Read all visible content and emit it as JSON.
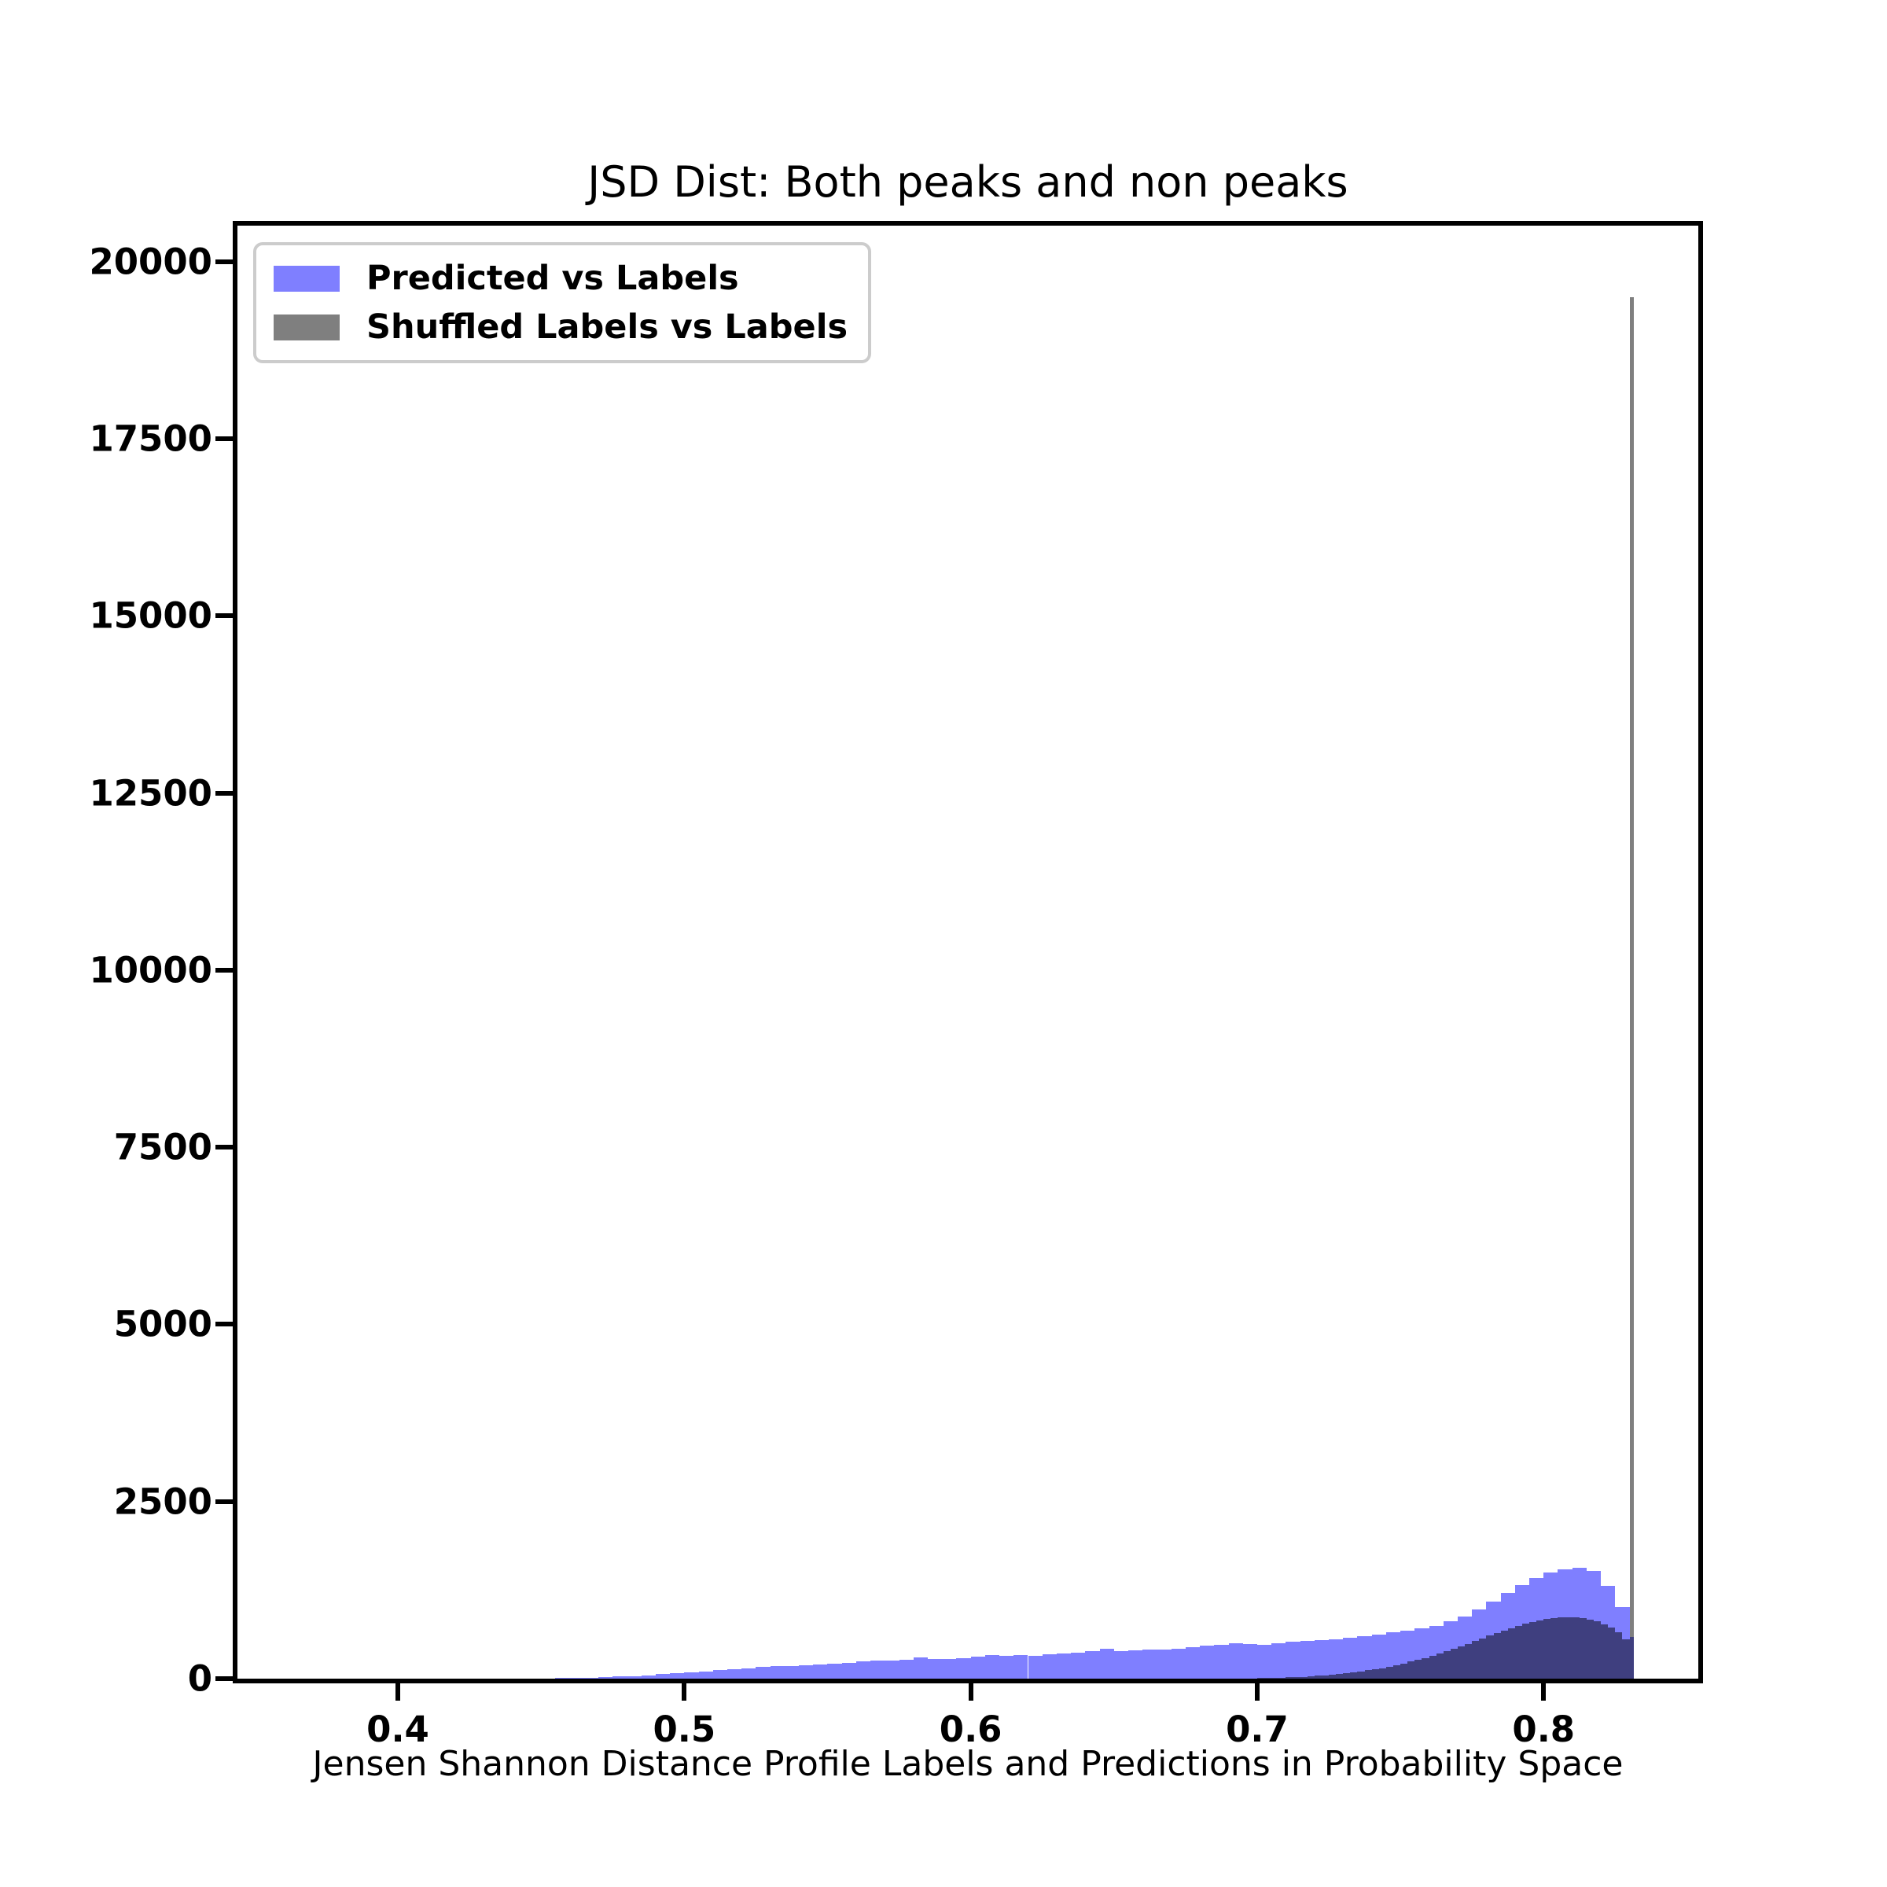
{
  "chart": {
    "title": "JSD Dist: Both peaks and non peaks",
    "xlabel": "Jensen Shannon Distance Profile Labels and Predictions in Probability Space",
    "legend": {
      "entries": [
        {
          "label": "Predicted vs Labels",
          "color": "#7f7fff"
        },
        {
          "label": "Shuffled Labels vs Labels",
          "color": "#7f7f7f"
        }
      ],
      "position": "upper left"
    }
  },
  "chart_data": {
    "type": "bar",
    "subtype": "overlaid-histograms",
    "title": "JSD Dist: Both peaks and non peaks",
    "xlabel": "Jensen Shannon Distance Profile Labels and Predictions in Probability Space",
    "ylabel": "",
    "grid": false,
    "legend_position": "upper left",
    "xlim": [
      0.344,
      0.854
    ],
    "ylim": [
      0,
      20510
    ],
    "xticks": [
      0.4,
      0.5,
      0.6,
      0.7,
      0.8
    ],
    "yticks": [
      0,
      2500,
      5000,
      7500,
      10000,
      12500,
      15000,
      17500,
      20000
    ],
    "clip_x_max": 0.8315,
    "series": [
      {
        "name": "Predicted vs Labels",
        "render_color": "#7f7fff",
        "source_color_note": "blue at alpha 0.5 over white",
        "bin_start": 0.45,
        "bin_width": 0.005,
        "counts": [
          4,
          6,
          10,
          14,
          20,
          28,
          38,
          50,
          62,
          76,
          90,
          104,
          118,
          132,
          148,
          163,
          175,
          181,
          186,
          196,
          210,
          226,
          244,
          251,
          258,
          270,
          296,
          273,
          278,
          291,
          307,
          333,
          325,
          331,
          322,
          341,
          355,
          362,
          390,
          425,
          392,
          400,
          407,
          415,
          425,
          443,
          463,
          480,
          500,
          490,
          481,
          500,
          518,
          533,
          548,
          560,
          574,
          596,
          622,
          650,
          680,
          712,
          748,
          810,
          880,
          975,
          1085,
          1210,
          1320,
          1420,
          1495,
          1545,
          1565,
          1520,
          1310,
          1015,
          590
        ]
      },
      {
        "name": "Shuffled Labels vs Labels",
        "render_color": "rgba(0,0,0,0.5)",
        "source_color_note": "black at alpha 0.5; overlap over blue reads #40407f",
        "bin_start": 0.7,
        "bin_width": 0.0025,
        "counts": [
          8,
          10,
          12,
          15,
          18,
          22,
          27,
          33,
          40,
          48,
          57,
          67,
          78,
          90,
          103,
          117,
          132,
          150,
          170,
          192,
          215,
          240,
          266,
          294,
          323,
          354,
          386,
          420,
          455,
          492,
          530,
          568,
          606,
          644,
          680,
          714,
          746,
          776,
          803,
          826,
          845,
          858,
          866,
          869,
          866,
          856,
          838,
          810,
          770,
          718,
          650,
          560,
          19500
        ]
      }
    ],
    "annotations": {
      "gray_spike": {
        "x": 0.83,
        "count": 19500
      },
      "blue_peak": {
        "x": 0.81,
        "count": 1565
      }
    }
  }
}
